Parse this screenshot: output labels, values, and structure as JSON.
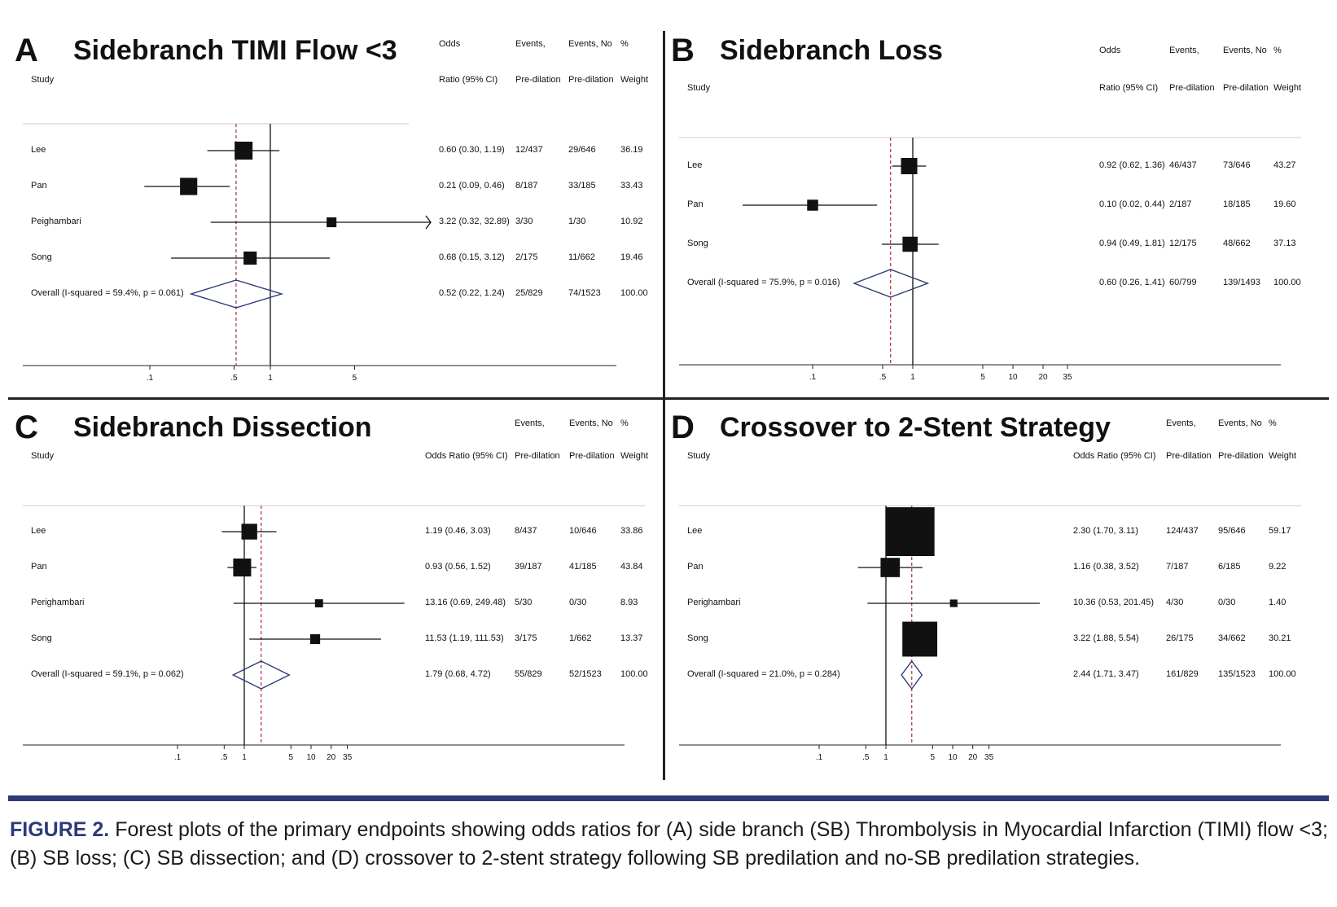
{
  "colors": {
    "overall_line": "#b02a3a",
    "diamond": "#2c3a78",
    "accent": "#2c3a78"
  },
  "caption": {
    "label": "FIGURE 2.",
    "text": "Forest plots of the primary endpoints showing odds ratios for (A) side branch (SB) Thrombolysis in Myocardial Infarction (TIMI) flow <3; (B) SB loss; (C) SB dissection; and (D) crossover to 2-stent strategy following SB predilation and no-SB predilation strategies."
  },
  "chart_data": [
    {
      "type": "forest",
      "letter": "A",
      "title": "Sidebranch TIMI Flow <3",
      "header": {
        "study": "Study",
        "or1": "Odds",
        "or2": "Ratio (95% CI)",
        "ev1": "Events,",
        "ev2": "Pre-dilation",
        "evno1": "Events, No",
        "evno2": "Pre-dilation",
        "w1": "%",
        "w2": "Weight"
      },
      "xmin": 0.02,
      "xmax": 6.5,
      "ticks": [
        0.1,
        0.5,
        1,
        5
      ],
      "tick_labels": [
        ".1",
        ".5",
        "1",
        "5"
      ],
      "studies": [
        {
          "name": "Lee",
          "or": 0.6,
          "lo": 0.3,
          "hi": 1.19,
          "or_text": "0.60 (0.30, 1.19)",
          "ev": "12/437",
          "evno": "29/646",
          "weight": "36.19",
          "w": 36.19
        },
        {
          "name": "Pan",
          "or": 0.21,
          "lo": 0.09,
          "hi": 0.46,
          "or_text": "0.21 (0.09, 0.46)",
          "ev": "8/187",
          "evno": "33/185",
          "weight": "33.43",
          "w": 33.43
        },
        {
          "name": "Peighambari",
          "or": 3.22,
          "lo": 0.32,
          "hi": 32.89,
          "or_text": "3.22 (0.32, 32.89)",
          "ev": "3/30",
          "evno": "1/30",
          "weight": "10.92",
          "w": 10.92
        },
        {
          "name": "Song",
          "or": 0.68,
          "lo": 0.15,
          "hi": 3.12,
          "or_text": "0.68 (0.15, 3.12)",
          "ev": "2/175",
          "evno": "11/662",
          "weight": "19.46",
          "w": 19.46
        }
      ],
      "overall": {
        "label": "Overall  (I-squared = 59.4%, p = 0.061)",
        "or": 0.52,
        "lo": 0.22,
        "hi": 1.24,
        "or_text": "0.52 (0.22, 1.24)",
        "ev": "25/829",
        "evno": "74/1523",
        "weight": "100.00"
      }
    },
    {
      "type": "forest",
      "letter": "B",
      "title": "Sidebranch Loss",
      "header": {
        "study": "Study",
        "or1": "Odds",
        "or2": "Ratio (95% CI)",
        "ev1": "Events,",
        "ev2": "Pre-dilation",
        "evno1": "Events, No",
        "evno2": "Pre-dilation",
        "w1": "%",
        "w2": "Weight"
      },
      "xmin": 0.02,
      "xmax": 35,
      "ticks": [
        0.1,
        0.5,
        1,
        5,
        10,
        20,
        35
      ],
      "tick_labels": [
        ".1",
        ".5",
        "1",
        "5",
        "10",
        "20",
        "35"
      ],
      "studies": [
        {
          "name": "Lee",
          "or": 0.92,
          "lo": 0.62,
          "hi": 1.36,
          "or_text": "0.92 (0.62, 1.36)",
          "ev": "46/437",
          "evno": "73/646",
          "weight": "43.27",
          "w": 43.27
        },
        {
          "name": "Pan",
          "or": 0.1,
          "lo": 0.02,
          "hi": 0.44,
          "or_text": "0.10 (0.02, 0.44)",
          "ev": "2/187",
          "evno": "18/185",
          "weight": "19.60",
          "w": 19.6
        },
        {
          "name": "Song",
          "or": 0.94,
          "lo": 0.49,
          "hi": 1.81,
          "or_text": "0.94 (0.49, 1.81)",
          "ev": "12/175",
          "evno": "48/662",
          "weight": "37.13",
          "w": 37.13
        }
      ],
      "overall": {
        "label": "Overall  (I-squared = 75.9%, p = 0.016)",
        "or": 0.6,
        "lo": 0.26,
        "hi": 1.41,
        "or_text": "0.60 (0.26, 1.41)",
        "ev": "60/799",
        "evno": "139/1493",
        "weight": "100.00"
      }
    },
    {
      "type": "forest",
      "letter": "C",
      "title": "Sidebranch Dissection",
      "header": {
        "study": "Study",
        "or1": "",
        "or2": "Odds Ratio (95% CI)",
        "ev1": "Events,",
        "ev2": "Pre-dilation",
        "evno1": "Events, No",
        "evno2": "Pre-dilation",
        "w1": "%",
        "w2": "Weight"
      },
      "xmin": 0.02,
      "xmax": 70,
      "ticks": [
        0.1,
        0.5,
        1,
        5,
        10,
        20,
        35
      ],
      "tick_labels": [
        ".1",
        ".5",
        "1",
        "5",
        "10",
        "20",
        "35"
      ],
      "studies": [
        {
          "name": "Lee",
          "or": 1.19,
          "lo": 0.46,
          "hi": 3.03,
          "or_text": "1.19 (0.46, 3.03)",
          "ev": "8/437",
          "evno": "10/646",
          "weight": "33.86",
          "w": 33.86
        },
        {
          "name": "Pan",
          "or": 0.93,
          "lo": 0.56,
          "hi": 1.52,
          "or_text": "0.93 (0.56, 1.52)",
          "ev": "39/187",
          "evno": "41/185",
          "weight": "43.84",
          "w": 43.84
        },
        {
          "name": "Perighambari",
          "or": 13.16,
          "lo": 0.69,
          "hi": 249.48,
          "or_text": "13.16 (0.69, 249.48)",
          "ev": "5/30",
          "evno": "0/30",
          "weight": "8.93",
          "w": 8.93
        },
        {
          "name": "Song",
          "or": 11.53,
          "lo": 1.19,
          "hi": 111.53,
          "or_text": "11.53 (1.19, 111.53)",
          "ev": "3/175",
          "evno": "1/662",
          "weight": "13.37",
          "w": 13.37
        }
      ],
      "overall": {
        "label": "Overall  (I-squared = 59.1%, p = 0.062)",
        "or": 1.79,
        "lo": 0.68,
        "hi": 4.72,
        "or_text": "1.79 (0.68, 4.72)",
        "ev": "55/829",
        "evno": "52/1523",
        "weight": "100.00"
      }
    },
    {
      "type": "forest",
      "letter": "D",
      "title": "Crossover to 2-Stent Strategy",
      "header": {
        "study": "Study",
        "or1": "",
        "or2": "Odds Ratio (95% CI)",
        "ev1": "Events,",
        "ev2": "Pre-dilation",
        "evno1": "Events, No",
        "evno2": "Pre-dilation",
        "w1": "%",
        "w2": "Weight"
      },
      "xmin": 0.02,
      "xmax": 200,
      "ticks": [
        0.1,
        0.5,
        1,
        5,
        10,
        20,
        35
      ],
      "tick_labels": [
        ".1",
        ".5",
        "1",
        "5",
        "10",
        "20",
        "35"
      ],
      "studies": [
        {
          "name": "Lee",
          "or": 2.3,
          "lo": 1.7,
          "hi": 3.11,
          "or_text": "2.30 (1.70, 3.11)",
          "ev": "124/437",
          "evno": "95/646",
          "weight": "59.17",
          "w": 59.17
        },
        {
          "name": "Pan",
          "or": 1.16,
          "lo": 0.38,
          "hi": 3.52,
          "or_text": "1.16 (0.38, 3.52)",
          "ev": "7/187",
          "evno": "6/185",
          "weight": "9.22",
          "w": 9.22
        },
        {
          "name": "Perighambari",
          "or": 10.36,
          "lo": 0.53,
          "hi": 201.45,
          "or_text": "10.36 (0.53, 201.45)",
          "ev": "4/30",
          "evno": "0/30",
          "weight": "1.40",
          "w": 1.4
        },
        {
          "name": "Song",
          "or": 3.22,
          "lo": 1.88,
          "hi": 5.54,
          "or_text": "3.22 (1.88, 5.54)",
          "ev": "26/175",
          "evno": "34/662",
          "weight": "30.21",
          "w": 30.21
        }
      ],
      "overall": {
        "label": "Overall  (I-squared = 21.0%, p = 0.284)",
        "or": 2.44,
        "lo": 1.71,
        "hi": 3.47,
        "or_text": "2.44 (1.71, 3.47)",
        "ev": "161/829",
        "evno": "135/1523",
        "weight": "100.00"
      }
    }
  ]
}
